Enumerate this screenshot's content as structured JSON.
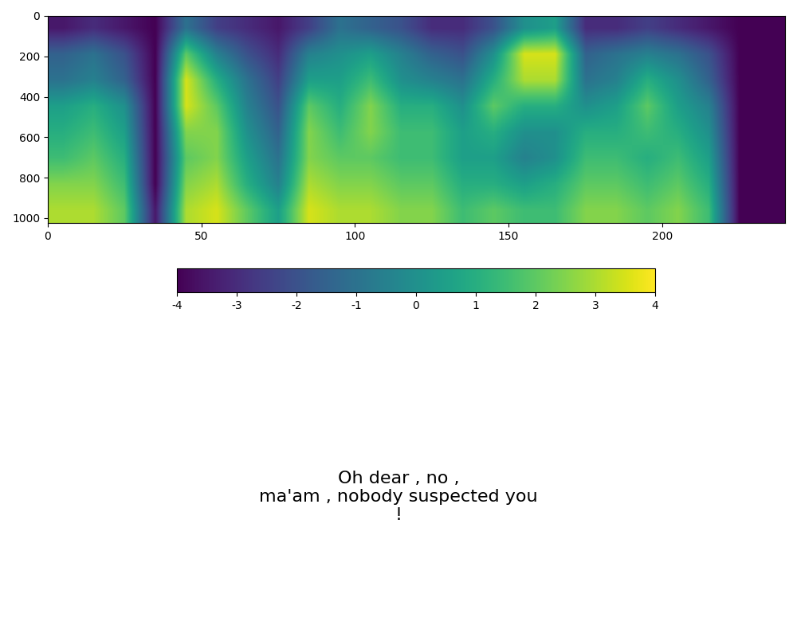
{
  "chart_data": {
    "type": "heatmap",
    "color": "viridis",
    "xlim": [
      0,
      240
    ],
    "xticks": [
      0,
      50,
      100,
      150,
      200
    ],
    "ylim": [
      1024,
      0
    ],
    "yticks": [
      0,
      200,
      400,
      600,
      800,
      1000
    ],
    "cells": [
      [
        -3.5,
        -3,
        -3.5,
        -4,
        -1,
        -2.5,
        -3,
        -3.5,
        -2.5,
        -1,
        -1.5,
        -2,
        -3,
        -3,
        -2,
        0,
        0.5,
        -3,
        -3,
        -2.5,
        -3,
        -3.5,
        -4,
        -4
      ],
      [
        -1.5,
        -1,
        -2,
        -4,
        2,
        -0.5,
        -2,
        -3,
        -0.5,
        0,
        0.5,
        -0.5,
        -1.5,
        -2,
        0,
        3.5,
        3.5,
        -1.5,
        -1,
        -0.5,
        -1,
        -2,
        -4,
        -4
      ],
      [
        -1,
        -0.5,
        -1.5,
        -4,
        3.5,
        1,
        -1,
        -2.5,
        0.5,
        0.5,
        1.5,
        0,
        -0.5,
        -1,
        1,
        3,
        3,
        -1,
        -0.5,
        1,
        0,
        -1.5,
        -4,
        -4
      ],
      [
        0.5,
        1,
        0,
        -4,
        3.5,
        2,
        -0.5,
        -2,
        2,
        1,
        2.5,
        1,
        1,
        0,
        2,
        1,
        1,
        0,
        0.5,
        2,
        0.5,
        -0.5,
        -4,
        -4
      ],
      [
        1,
        1.5,
        0.5,
        -4,
        2.5,
        2.5,
        0,
        -1.5,
        2.5,
        1.5,
        2.5,
        1.5,
        1.5,
        0.5,
        1,
        0,
        0,
        1,
        1,
        1.5,
        1,
        0,
        -4,
        -4
      ],
      [
        1.5,
        2,
        1,
        -4,
        2,
        2.5,
        0.5,
        -1,
        2.5,
        2,
        2,
        1.5,
        1.5,
        0.5,
        0.5,
        -0.5,
        0,
        1.5,
        1.5,
        1,
        1.5,
        0.5,
        -4,
        -4
      ],
      [
        2.5,
        2.5,
        1.5,
        -4,
        2.5,
        3,
        1,
        -0.5,
        3,
        2.5,
        2.5,
        2,
        2,
        1,
        1,
        0.5,
        1,
        2,
        2,
        1.5,
        2,
        1,
        -4,
        -4
      ],
      [
        3,
        3,
        2,
        -3.5,
        3,
        3.5,
        2,
        0.5,
        3.5,
        3,
        3,
        2.5,
        2.5,
        1.5,
        2,
        1.5,
        1.5,
        2.5,
        2.5,
        2,
        2.5,
        1.5,
        -4,
        -4
      ]
    ],
    "colorbar": {
      "range": [
        -4,
        4
      ],
      "ticks": [
        -4,
        -3,
        -2,
        -1,
        0,
        1,
        2,
        3,
        4
      ]
    },
    "annotations": [
      "Oh dear , no ,\nma'am , nobody suspected you\n!"
    ]
  }
}
